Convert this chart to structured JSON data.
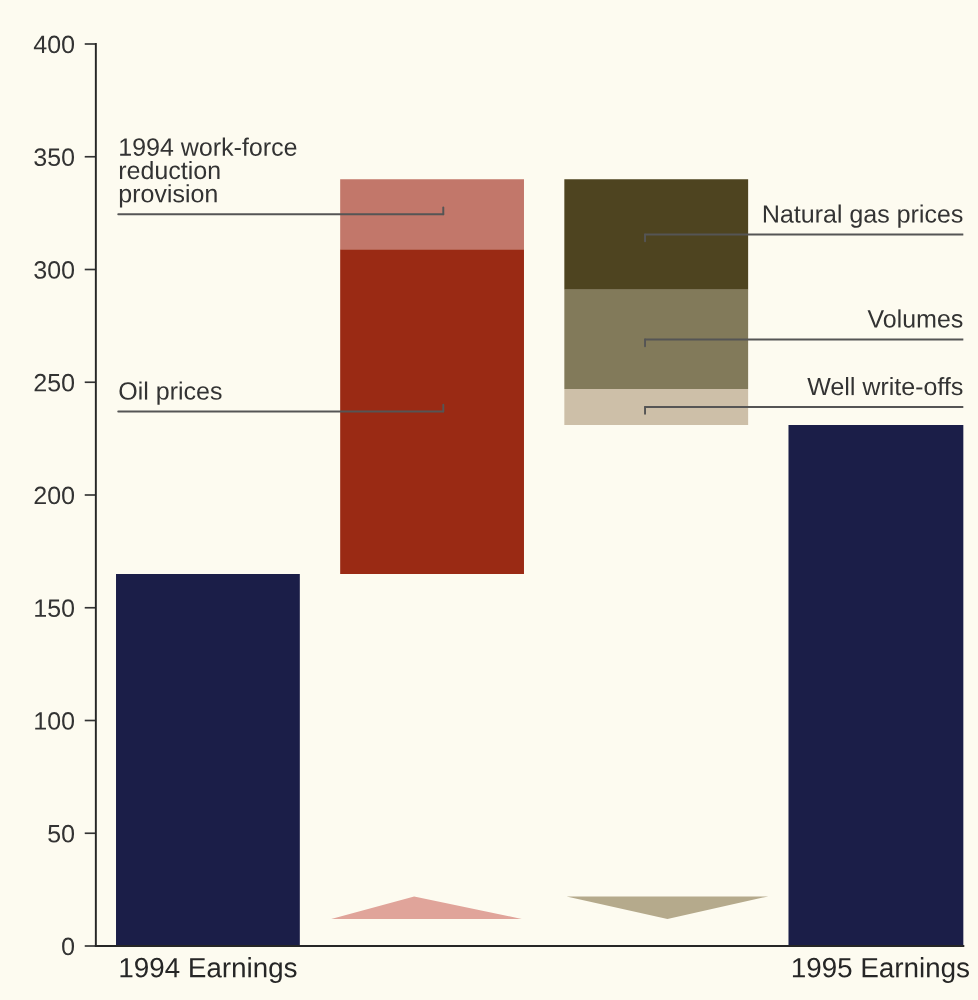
{
  "chart_data": {
    "type": "bar",
    "categories": [
      "1994 Earnings",
      null,
      null,
      "1995 Earnings"
    ],
    "series": [
      {
        "color": "#1b1e48",
        "values": [
          165,
          null,
          null,
          231
        ],
        "base": [
          0,
          null,
          null,
          0
        ]
      },
      {
        "name": "Oil prices",
        "color": "#9a2a14",
        "values": [
          null,
          144,
          null,
          null
        ],
        "base": [
          null,
          165,
          null,
          null
        ]
      },
      {
        "name": "1994 work-force\nreduction\nprovision",
        "color": "#c2776a",
        "values": [
          null,
          31,
          null,
          null
        ],
        "base": [
          null,
          309,
          null,
          null
        ]
      },
      {
        "name": "Natural gas prices",
        "color": "#4e4420",
        "values": [
          null,
          null,
          -49,
          null
        ],
        "base": [
          null,
          null,
          340,
          null
        ]
      },
      {
        "name": "Volumes",
        "color": "#827a5a",
        "values": [
          null,
          null,
          -44,
          null
        ],
        "base": [
          null,
          null,
          291,
          null
        ]
      },
      {
        "name": "Well write-offs",
        "color": "#cdbfa8",
        "values": [
          null,
          null,
          -16,
          null
        ],
        "base": [
          null,
          null,
          247,
          null
        ]
      }
    ],
    "ylim": [
      0,
      400
    ],
    "yticks": [
      0,
      50,
      100,
      150,
      200,
      250,
      300,
      350,
      400
    ],
    "grid": false,
    "legend": false
  }
}
